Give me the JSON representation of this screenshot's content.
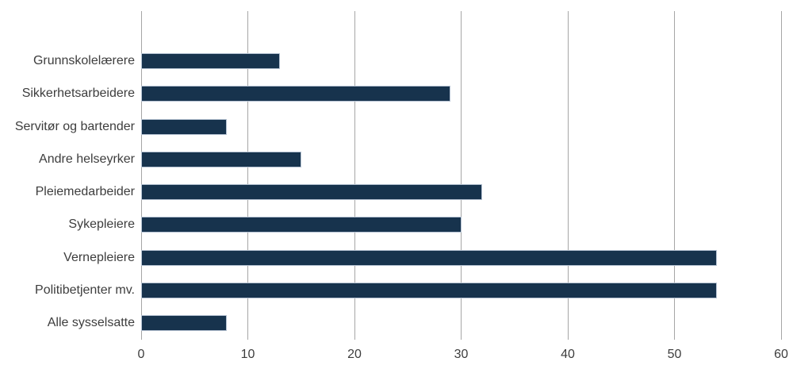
{
  "chart_data": {
    "type": "bar",
    "orientation": "horizontal",
    "title": "",
    "xlabel": "",
    "ylabel": "",
    "categories": [
      "Grunnskolelærere",
      "Sikkerhetsarbeidere",
      "Servitør og bartender",
      "Andre helseyrker",
      "Pleiemedarbeider",
      "Sykepleiere",
      "Vernepleiere",
      "Politibetjenter mv.",
      "Alle sysselsatte"
    ],
    "values": [
      13,
      29,
      8,
      15,
      32,
      30,
      54,
      54,
      8
    ],
    "xlim": [
      0,
      60
    ],
    "xticks": [
      0,
      10,
      20,
      30,
      40,
      50,
      60
    ],
    "grid": "vertical-only",
    "legend": "none",
    "colors": {
      "bar_fill": "#17334d",
      "bar_border": "#b5c2d2",
      "gridline": "#a6a6a6",
      "text": "#3d3d3d",
      "background": "#ffffff"
    }
  }
}
